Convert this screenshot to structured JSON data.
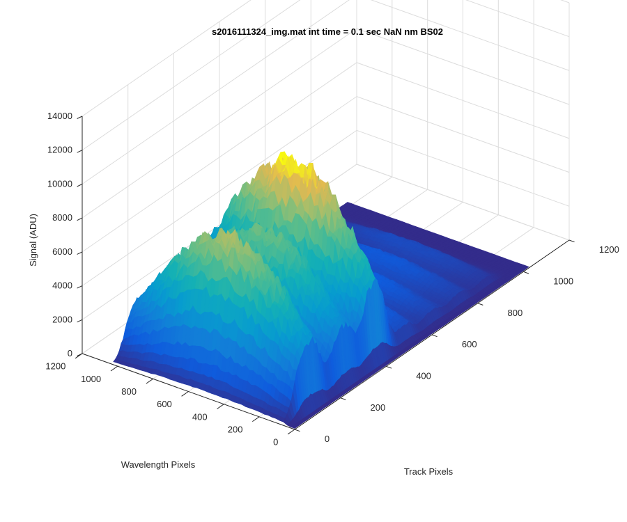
{
  "chart_data": {
    "type": "surface3d",
    "title": "s2016111324_img.mat int time = 0.1 sec  NaN nm BS02",
    "xlabel": "Track Pixels",
    "ylabel": "Wavelength Pixels",
    "zlabel": "Signal (ADU)",
    "xlim": [
      0,
      1200
    ],
    "ylim": [
      0,
      1200
    ],
    "zlim": [
      0,
      14000
    ],
    "x_ticks": [
      "0",
      "200",
      "400",
      "600",
      "800",
      "1000",
      "1200"
    ],
    "y_ticks": [
      "0",
      "200",
      "400",
      "600",
      "800",
      "1000",
      "1200"
    ],
    "z_ticks": [
      "0",
      "2000",
      "4000",
      "6000",
      "8000",
      "10000",
      "12000",
      "14000"
    ],
    "grid": true,
    "colormap": "parula",
    "data_extent": {
      "track_pixels": [
        0,
        1024
      ],
      "wavelength_pixels": [
        0,
        1024
      ]
    },
    "track_peaks": [
      {
        "track_center": 110,
        "width": 70,
        "peak_signal": 8300
      },
      {
        "track_center": 260,
        "width": 65,
        "peak_signal": 7200
      },
      {
        "track_center": 395,
        "width": 65,
        "peak_signal": 10000
      },
      {
        "track_center": 530,
        "width": 55,
        "peak_signal": 2000
      },
      {
        "track_center": 650,
        "width": 55,
        "peak_signal": 1500
      },
      {
        "track_center": 765,
        "width": 55,
        "peak_signal": 1300
      },
      {
        "track_center": 880,
        "width": 50,
        "peak_signal": 900
      }
    ]
  }
}
